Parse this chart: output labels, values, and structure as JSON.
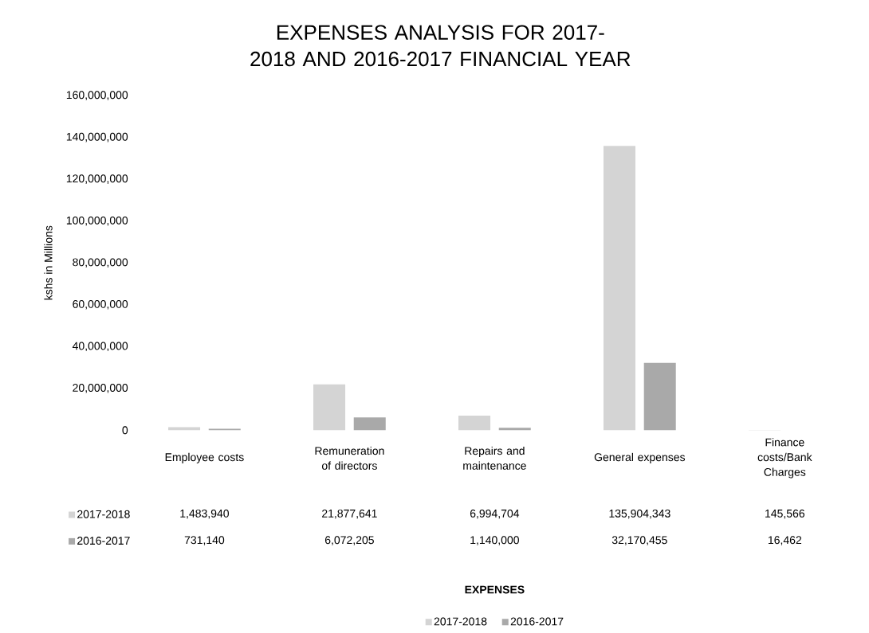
{
  "chart_data": {
    "type": "bar",
    "title": "EXPENSES ANALYSIS FOR 2017-2018 AND 2016-2017 FINANCIAL YEAR",
    "annotations": [
      "EXPENSES"
    ],
    "ylabel": "kshs in Millions",
    "categories": [
      "Employee costs",
      "Remuneration of directors",
      "Repairs and maintenance",
      "General expenses",
      "Finance costs/Bank Charges"
    ],
    "series": [
      {
        "name": "2017-2018",
        "color": "#d4d4d4",
        "values": [
          1483940,
          21877641,
          6994704,
          135904343,
          145566
        ],
        "value_labels": [
          "1,483,940",
          "21,877,641",
          "6,994,704",
          "135,904,343",
          "145,566"
        ]
      },
      {
        "name": "2016-2017",
        "color": "#a9a9a9",
        "values": [
          731140,
          6072205,
          1140000,
          32170455,
          16462
        ],
        "value_labels": [
          "731,140",
          "6,072,205",
          "1,140,000",
          "32,170,455",
          "16,462"
        ]
      }
    ],
    "ylim": [
      0,
      160000000
    ],
    "yticks": [
      0,
      {
        "value": 20000000,
        "label": "20,000,000"
      },
      {
        "value": 40000000,
        "label": "40,000,000"
      },
      {
        "value": 60000000,
        "label": "60,000,000"
      },
      {
        "value": 80000000,
        "label": "80,000,000"
      },
      {
        "value": 100000000,
        "label": "100,000,000"
      },
      {
        "value": 120000000,
        "label": "120,000,000"
      },
      {
        "value": 140000000,
        "label": "140,000,000"
      },
      {
        "value": 160000000,
        "label": "160,000,000"
      }
    ],
    "legend": "bottom"
  }
}
